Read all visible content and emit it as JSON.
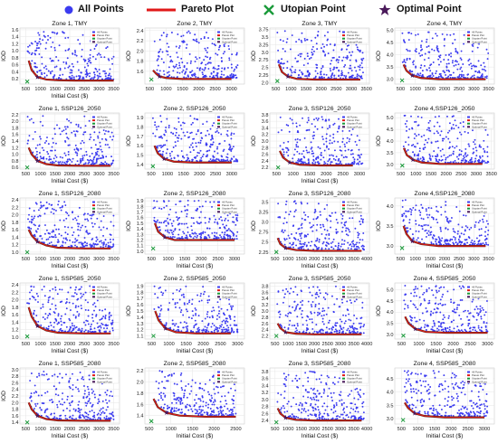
{
  "legend": {
    "all_points": "All Points",
    "pareto": "Pareto Plot",
    "utopian": "Utopian Point",
    "optimal": "Optimal Point"
  },
  "colors": {
    "all_points": "#3b3bf0",
    "pareto": "#e01818",
    "utopian": "#1a9a3a",
    "optimal": "#4a1a5a",
    "pareto_dark": "#5a2a1a"
  },
  "mini_legend": [
    "All Points",
    "Pareto Plot",
    "Utopian Point",
    "Optimal Point"
  ],
  "chart_data": [
    {
      "type": "scatter",
      "title": "Zone 1, TMY",
      "xlabel": "Initial Cost ($)",
      "ylabel": "IOD",
      "xlim": [
        300,
        3700
      ],
      "ylim": [
        0.05,
        1.65
      ],
      "xticks": [
        500,
        1000,
        1500,
        2000,
        2500,
        3000,
        3500
      ],
      "yticks": [
        0.2,
        0.4,
        0.6,
        0.8,
        1.0,
        1.2,
        1.4,
        1.6
      ],
      "pareto": [
        [
          600,
          0.72
        ],
        [
          700,
          0.45
        ],
        [
          900,
          0.25
        ],
        [
          1200,
          0.18
        ],
        [
          1600,
          0.16
        ],
        [
          2200,
          0.15
        ],
        [
          3000,
          0.15
        ],
        [
          3500,
          0.15
        ]
      ],
      "optimal": [
        900,
        0.25
      ],
      "utopian": [
        550,
        0.12
      ]
    },
    {
      "type": "scatter",
      "title": "Zone 2, TMY",
      "xlabel": "",
      "ylabel": "IOD",
      "xlim": [
        350,
        3400
      ],
      "ylim": [
        1.35,
        2.45
      ],
      "xticks": [
        500,
        1000,
        1500,
        2000,
        2500,
        3000
      ],
      "yticks": [
        1.6,
        1.8,
        2.0,
        2.2,
        2.4
      ],
      "pareto": [
        [
          600,
          1.62
        ],
        [
          700,
          1.55
        ],
        [
          800,
          1.5
        ],
        [
          1000,
          1.47
        ],
        [
          1500,
          1.45
        ],
        [
          2000,
          1.45
        ],
        [
          3000,
          1.45
        ]
      ],
      "optimal": [
        800,
        1.5
      ],
      "utopian": [
        550,
        1.44
      ]
    },
    {
      "type": "scatter",
      "title": "Zone 3, TMY",
      "xlabel": "",
      "ylabel": "IOD",
      "xlim": [
        300,
        3600
      ],
      "ylim": [
        1.95,
        3.8
      ],
      "xticks": [
        500,
        1000,
        1500,
        2000,
        2500,
        3000,
        3500
      ],
      "yticks": [
        2.0,
        2.25,
        2.5,
        2.75,
        3.0,
        3.25,
        3.5,
        3.75
      ],
      "pareto": [
        [
          600,
          2.6
        ],
        [
          700,
          2.35
        ],
        [
          900,
          2.2
        ],
        [
          1200,
          2.12
        ],
        [
          1800,
          2.1
        ],
        [
          2500,
          2.1
        ],
        [
          3300,
          2.1
        ]
      ],
      "optimal": [
        900,
        2.2
      ],
      "utopian": [
        550,
        2.05
      ]
    },
    {
      "type": "scatter",
      "title": "Zone 4, TMY",
      "xlabel": "",
      "ylabel": "IOD",
      "xlim": [
        300,
        3700
      ],
      "ylim": [
        2.8,
        5.1
      ],
      "xticks": [
        500,
        1000,
        1500,
        2000,
        2500,
        3000,
        3500
      ],
      "yticks": [
        3.0,
        3.5,
        4.0,
        4.5,
        5.0
      ],
      "pareto": [
        [
          600,
          3.6
        ],
        [
          700,
          3.35
        ],
        [
          900,
          3.15
        ],
        [
          1200,
          3.05
        ],
        [
          1800,
          3.0
        ],
        [
          2600,
          3.0
        ],
        [
          3400,
          3.0
        ]
      ],
      "optimal": [
        900,
        3.15
      ],
      "utopian": [
        550,
        2.95
      ]
    },
    {
      "type": "scatter",
      "title": "Zone 1, SSP126_2050",
      "xlabel": "Initial Cost ($)",
      "ylabel": "IOD",
      "xlim": [
        300,
        3700
      ],
      "ylim": [
        0.55,
        2.25
      ],
      "xticks": [
        500,
        1000,
        1500,
        2000,
        2500,
        3000,
        3500
      ],
      "yticks": [
        0.6,
        0.8,
        1.0,
        1.2,
        1.4,
        1.6,
        1.8,
        2.0,
        2.2
      ],
      "pareto": [
        [
          600,
          1.2
        ],
        [
          700,
          1.0
        ],
        [
          900,
          0.8
        ],
        [
          1200,
          0.7
        ],
        [
          1600,
          0.66
        ],
        [
          2500,
          0.65
        ],
        [
          3400,
          0.65
        ]
      ],
      "optimal": [
        900,
        0.8
      ],
      "utopian": [
        550,
        0.6
      ]
    },
    {
      "type": "scatter",
      "title": "Zone 2, SSP126_2050",
      "xlabel": "",
      "ylabel": "IOD",
      "xlim": [
        300,
        3400
      ],
      "ylim": [
        1.35,
        1.95
      ],
      "xticks": [
        500,
        1000,
        1500,
        2000,
        2500,
        3000
      ],
      "yticks": [
        1.4,
        1.5,
        1.6,
        1.7,
        1.8,
        1.9
      ],
      "pareto": [
        [
          600,
          1.6
        ],
        [
          700,
          1.52
        ],
        [
          900,
          1.46
        ],
        [
          1200,
          1.43
        ],
        [
          1800,
          1.42
        ],
        [
          3000,
          1.42
        ]
      ],
      "optimal": [
        900,
        1.46
      ],
      "utopian": [
        550,
        1.38
      ]
    },
    {
      "type": "scatter",
      "title": "Zone 3, SSP126_2050",
      "xlabel": "Initial Cost ($)",
      "ylabel": "IOD",
      "xlim": [
        300,
        3300
      ],
      "ylim": [
        2.15,
        3.85
      ],
      "xticks": [
        500,
        1000,
        1500,
        2000,
        2500,
        3000
      ],
      "yticks": [
        2.2,
        2.4,
        2.6,
        2.8,
        3.0,
        3.2,
        3.4,
        3.6,
        3.8
      ],
      "pareto": [
        [
          600,
          2.7
        ],
        [
          700,
          2.5
        ],
        [
          900,
          2.35
        ],
        [
          1200,
          2.28
        ],
        [
          1800,
          2.26
        ],
        [
          2800,
          2.26
        ]
      ],
      "optimal": [
        900,
        2.35
      ],
      "utopian": [
        550,
        2.2
      ]
    },
    {
      "type": "scatter",
      "title": "Zone 4,SSP126_2050",
      "xlabel": "",
      "ylabel": "IOD",
      "xlim": [
        300,
        3600
      ],
      "ylim": [
        2.8,
        5.2
      ],
      "xticks": [
        500,
        1000,
        1500,
        2000,
        2500,
        3000,
        3500
      ],
      "yticks": [
        3.0,
        3.5,
        4.0,
        4.5,
        5.0
      ],
      "pareto": [
        [
          600,
          3.7
        ],
        [
          700,
          3.4
        ],
        [
          900,
          3.2
        ],
        [
          1200,
          3.08
        ],
        [
          1800,
          3.02
        ],
        [
          3200,
          3.02
        ]
      ],
      "optimal": [
        900,
        3.2
      ],
      "utopian": [
        550,
        2.95
      ]
    },
    {
      "type": "scatter",
      "title": "Zone 1,  SSP126_2080",
      "xlabel": "Initial Cost ($)",
      "ylabel": "IOD",
      "xlim": [
        300,
        3700
      ],
      "ylim": [
        0.95,
        2.45
      ],
      "xticks": [
        500,
        1000,
        1500,
        2000,
        2500,
        3000,
        3500
      ],
      "yticks": [
        1.0,
        1.2,
        1.4,
        1.6,
        1.8,
        2.0,
        2.2,
        2.4
      ],
      "pareto": [
        [
          600,
          1.6
        ],
        [
          700,
          1.45
        ],
        [
          900,
          1.28
        ],
        [
          1200,
          1.18
        ],
        [
          1600,
          1.12
        ],
        [
          2500,
          1.1
        ],
        [
          3400,
          1.1
        ]
      ],
      "optimal": [
        900,
        1.28
      ],
      "utopian": [
        550,
        1.0
      ]
    },
    {
      "type": "scatter",
      "title": "Zone 2, SSP126_2080",
      "xlabel": "Initial Cost ($)",
      "ylabel": "IOD",
      "xlim": [
        300,
        3300
      ],
      "ylim": [
        0.95,
        1.95
      ],
      "xticks": [
        500,
        1000,
        1500,
        2000,
        2500,
        3000
      ],
      "yticks": [
        1.0,
        1.1,
        1.2,
        1.3,
        1.4,
        1.5,
        1.6,
        1.7,
        1.8,
        1.9
      ],
      "pareto": [
        [
          600,
          1.5
        ],
        [
          700,
          1.35
        ],
        [
          900,
          1.25
        ],
        [
          1200,
          1.2
        ],
        [
          1800,
          1.2
        ],
        [
          3000,
          1.2
        ]
      ],
      "optimal": [
        900,
        1.25
      ],
      "utopian": [
        550,
        1.05
      ]
    },
    {
      "type": "scatter",
      "title": "Zone 3, SSP126_2080",
      "xlabel": "Initial Cost ($)",
      "ylabel": "IOD",
      "xlim": [
        300,
        4100
      ],
      "ylim": [
        2.2,
        3.6
      ],
      "xticks": [
        500,
        1000,
        1500,
        2000,
        2500,
        3000,
        3500,
        4000
      ],
      "yticks": [
        2.25,
        2.5,
        2.75,
        3.0,
        3.25,
        3.5
      ],
      "pareto": [
        [
          600,
          2.6
        ],
        [
          700,
          2.45
        ],
        [
          900,
          2.35
        ],
        [
          1300,
          2.3
        ],
        [
          2000,
          2.28
        ],
        [
          3800,
          2.28
        ]
      ],
      "optimal": [
        900,
        2.35
      ],
      "utopian": [
        550,
        2.25
      ]
    },
    {
      "type": "scatter",
      "title": "Zone 4,SSP126_2080",
      "xlabel": "Initial Cost ($)",
      "ylabel": "IOD",
      "xlim": [
        300,
        3700
      ],
      "ylim": [
        2.8,
        4.2
      ],
      "xticks": [
        500,
        1000,
        1500,
        2000,
        2500,
        3000,
        3500
      ],
      "yticks": [
        3.0,
        3.5,
        4.0
      ],
      "pareto": [
        [
          600,
          3.5
        ],
        [
          700,
          3.3
        ],
        [
          900,
          3.12
        ],
        [
          1200,
          3.05
        ],
        [
          1800,
          3.0
        ],
        [
          3400,
          3.0
        ]
      ],
      "optimal": [
        900,
        3.12
      ],
      "utopian": [
        550,
        2.95
      ]
    },
    {
      "type": "scatter",
      "title": "Zone 1,  SSP585_2050",
      "xlabel": "Initial Cost ($)",
      "ylabel": "IOD",
      "xlim": [
        300,
        3700
      ],
      "ylim": [
        0.95,
        2.45
      ],
      "xticks": [
        500,
        1000,
        1500,
        2000,
        2500,
        3000,
        3500
      ],
      "yticks": [
        1.0,
        1.2,
        1.4,
        1.6,
        1.8,
        2.0,
        2.2,
        2.4
      ],
      "pareto": [
        [
          600,
          1.8
        ],
        [
          700,
          1.55
        ],
        [
          900,
          1.3
        ],
        [
          1200,
          1.18
        ],
        [
          1600,
          1.12
        ],
        [
          2500,
          1.1
        ],
        [
          3400,
          1.1
        ]
      ],
      "optimal": [
        900,
        1.3
      ],
      "utopian": [
        550,
        1.02
      ]
    },
    {
      "type": "scatter",
      "title": "Zone 2, SSP585_2050",
      "xlabel": "Initial Cost ($)",
      "ylabel": "IOD",
      "xlim": [
        300,
        3200
      ],
      "ylim": [
        1.05,
        1.95
      ],
      "xticks": [
        500,
        1000,
        1500,
        2000,
        2500,
        3000
      ],
      "yticks": [
        1.1,
        1.2,
        1.3,
        1.4,
        1.5,
        1.6,
        1.7,
        1.8,
        1.9
      ],
      "pareto": [
        [
          600,
          1.5
        ],
        [
          700,
          1.35
        ],
        [
          900,
          1.22
        ],
        [
          1200,
          1.16
        ],
        [
          1800,
          1.14
        ],
        [
          2800,
          1.14
        ]
      ],
      "optimal": [
        900,
        1.22
      ],
      "utopian": [
        550,
        1.1
      ]
    },
    {
      "type": "scatter",
      "title": "Zone 3, SSP585_2050",
      "xlabel": "Initial Cost ($)",
      "ylabel": "IOD",
      "xlim": [
        300,
        4100
      ],
      "ylim": [
        2.1,
        3.9
      ],
      "xticks": [
        500,
        1000,
        1500,
        2000,
        2500,
        3000,
        3500,
        4000
      ],
      "yticks": [
        2.2,
        2.4,
        2.6,
        2.8,
        3.0,
        3.2,
        3.4,
        3.6,
        3.8
      ],
      "pareto": [
        [
          600,
          2.6
        ],
        [
          700,
          2.45
        ],
        [
          900,
          2.32
        ],
        [
          1300,
          2.27
        ],
        [
          2000,
          2.25
        ],
        [
          3800,
          2.25
        ]
      ],
      "optimal": [
        900,
        2.32
      ],
      "utopian": [
        550,
        2.2
      ]
    },
    {
      "type": "scatter",
      "title": "Zone 4, SSP585_2050",
      "xlabel": "Initial Cost ($)",
      "ylabel": "IOD",
      "xlim": [
        300,
        3200
      ],
      "ylim": [
        2.8,
        5.3
      ],
      "xticks": [
        500,
        1000,
        1500,
        2000,
        2500,
        3000
      ],
      "yticks": [
        3.0,
        3.5,
        4.0,
        4.5,
        5.0
      ],
      "pareto": [
        [
          600,
          3.8
        ],
        [
          700,
          3.5
        ],
        [
          900,
          3.25
        ],
        [
          1200,
          3.12
        ],
        [
          1800,
          3.08
        ],
        [
          3000,
          3.08
        ]
      ],
      "optimal": [
        900,
        3.25
      ],
      "utopian": [
        550,
        2.95
      ]
    },
    {
      "type": "scatter",
      "title": "Zone 1,  SSP585_2080",
      "xlabel": "Initial Cost ($)",
      "ylabel": "IOD",
      "xlim": [
        300,
        3700
      ],
      "ylim": [
        1.35,
        3.05
      ],
      "xticks": [
        500,
        1000,
        1500,
        2000,
        2500,
        3000,
        3500
      ],
      "yticks": [
        1.4,
        1.6,
        1.8,
        2.0,
        2.2,
        2.4,
        2.6,
        2.8,
        3.0
      ],
      "pareto": [
        [
          600,
          2.0
        ],
        [
          700,
          1.8
        ],
        [
          900,
          1.6
        ],
        [
          1200,
          1.5
        ],
        [
          1600,
          1.46
        ],
        [
          2500,
          1.45
        ],
        [
          3400,
          1.45
        ]
      ],
      "optimal": [
        900,
        1.6
      ],
      "utopian": [
        550,
        1.4
      ]
    },
    {
      "type": "scatter",
      "title": "Zone 2,  SSP585_2080",
      "xlabel": "Initial Cost ($)",
      "ylabel": "",
      "xlim": [
        400,
        2700
      ],
      "ylim": [
        1.25,
        2.25
      ],
      "xticks": [
        500,
        1000,
        1500,
        2000,
        2500
      ],
      "yticks": [
        1.4,
        1.6,
        1.8,
        2.0,
        2.2
      ],
      "pareto": [
        [
          600,
          1.7
        ],
        [
          700,
          1.55
        ],
        [
          900,
          1.45
        ],
        [
          1200,
          1.4
        ],
        [
          1800,
          1.38
        ],
        [
          2500,
          1.38
        ]
      ],
      "optimal": [
        900,
        1.45
      ],
      "utopian": [
        550,
        1.3
      ]
    },
    {
      "type": "scatter",
      "title": "Zone 3,  SSP585_2080",
      "xlabel": "Initial Cost ($)",
      "ylabel": "",
      "xlim": [
        300,
        4100
      ],
      "ylim": [
        2.3,
        3.9
      ],
      "xticks": [
        500,
        1000,
        1500,
        2000,
        2500,
        3000,
        3500,
        4000
      ],
      "yticks": [
        2.4,
        2.6,
        2.8,
        3.0,
        3.2,
        3.4,
        3.6,
        3.8
      ],
      "pareto": [
        [
          600,
          2.75
        ],
        [
          700,
          2.6
        ],
        [
          900,
          2.48
        ],
        [
          1300,
          2.42
        ],
        [
          2000,
          2.4
        ],
        [
          3800,
          2.4
        ]
      ],
      "optimal": [
        900,
        2.48
      ],
      "utopian": [
        550,
        2.35
      ]
    },
    {
      "type": "scatter",
      "title": "Zone 4, SSP585_2080",
      "xlabel": "Initial Cost ($)",
      "ylabel": "",
      "xlim": [
        300,
        3300
      ],
      "ylim": [
        2.8,
        4.9
      ],
      "xticks": [
        500,
        1000,
        1500,
        2000,
        2500,
        3000
      ],
      "yticks": [
        3.0,
        3.5,
        4.0,
        4.5
      ],
      "pareto": [
        [
          600,
          3.6
        ],
        [
          700,
          3.4
        ],
        [
          900,
          3.2
        ],
        [
          1200,
          3.1
        ],
        [
          1800,
          3.05
        ],
        [
          3000,
          3.05
        ]
      ],
      "optimal": [
        900,
        3.2
      ],
      "utopian": [
        550,
        2.95
      ]
    }
  ]
}
